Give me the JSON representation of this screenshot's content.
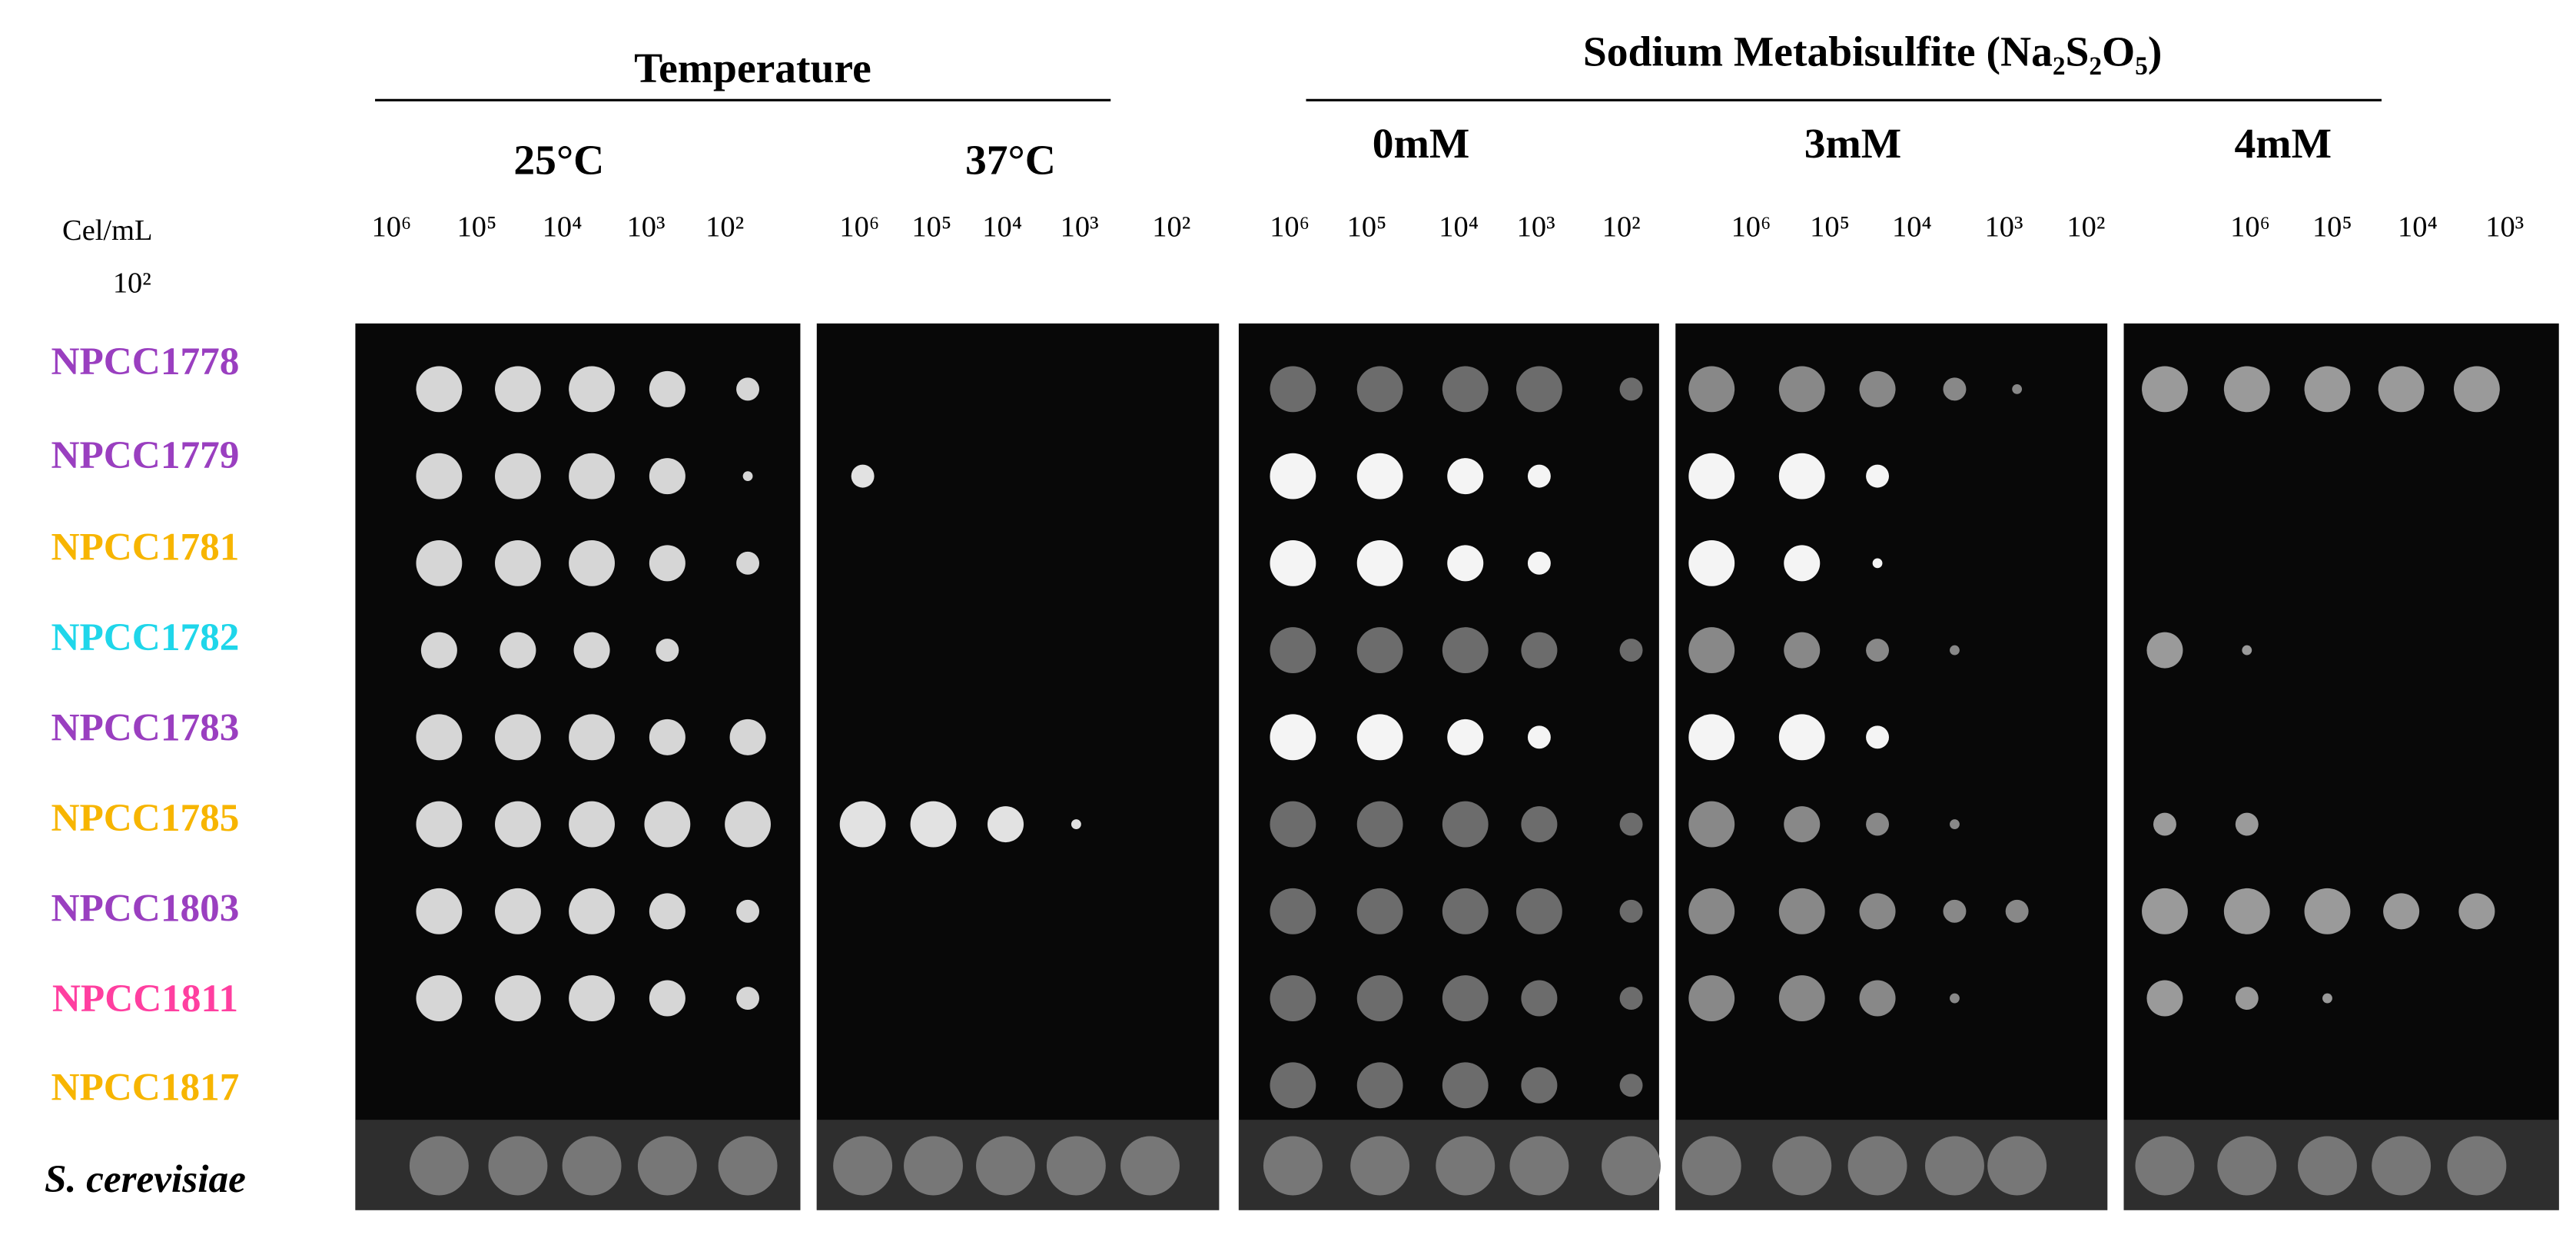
{
  "header": {
    "temperature": "Temperature",
    "sodium": "Sodium Metabisulfite (Na₂S₂O₅)"
  },
  "axis": {
    "unit": "Cel/mL",
    "extra": "10²"
  },
  "panels": [
    {
      "label": "25°C",
      "dilutions": [
        "10⁶",
        "10⁵",
        "10⁴",
        "10³",
        "10²"
      ]
    },
    {
      "label": "37°C",
      "dilutions": [
        "10⁶",
        "10⁵",
        "10⁴",
        "10³",
        "10²"
      ]
    },
    {
      "label": "0mM",
      "dilutions": [
        "10⁶",
        "10⁵",
        "10⁴",
        "10³",
        "10²"
      ]
    },
    {
      "label": "3mM",
      "dilutions": [
        "10⁶",
        "10⁵",
        "10⁴",
        "10³",
        "10²"
      ]
    },
    {
      "label": "4mM",
      "dilutions": [
        "10⁶",
        "10⁵",
        "10⁴",
        "10³"
      ]
    }
  ],
  "strains": [
    {
      "name": "NPCC1778",
      "color": "#9a3fc0"
    },
    {
      "name": "NPCC1779",
      "color": "#9a3fc0"
    },
    {
      "name": "NPCC1781",
      "color": "#f7b500"
    },
    {
      "name": "NPCC1782",
      "color": "#1fd6ea"
    },
    {
      "name": "NPCC1783",
      "color": "#9a3fc0"
    },
    {
      "name": "NPCC1785",
      "color": "#f7b500"
    },
    {
      "name": "NPCC1803",
      "color": "#9a3fc0"
    },
    {
      "name": "NPCC1811",
      "color": "#ff3fa0"
    },
    {
      "name": "NPCC1817",
      "color": "#f7b500"
    },
    {
      "name": "S. cerevisiae",
      "color": "#000000"
    }
  ]
}
